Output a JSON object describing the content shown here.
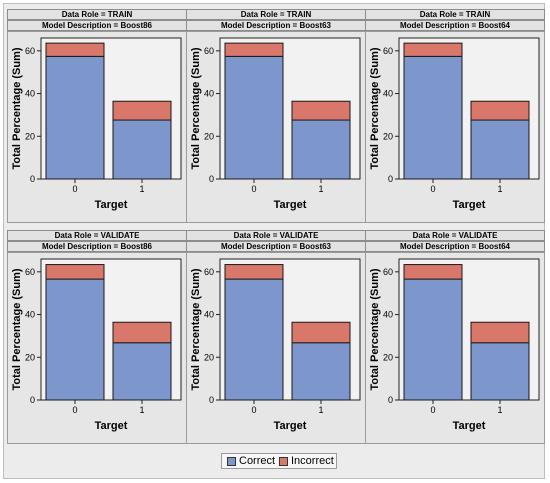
{
  "colors": {
    "correct": "#7d96cc",
    "incorrect": "#d9776b",
    "plot_bg": "#f2f2f2"
  },
  "legend": {
    "items": [
      {
        "label": "Correct",
        "color": "#7d96cc"
      },
      {
        "label": "Incorrect",
        "color": "#d9776b"
      }
    ]
  },
  "chart_data": [
    {
      "type": "bar",
      "stacked": true,
      "row_label": "Data Role = TRAIN",
      "col_label": "Model Description = Boost86",
      "categories": [
        "0",
        "1"
      ],
      "xlabel": "Target",
      "ylabel": "Total Percentage (Sum)",
      "ylim": [
        0,
        66
      ],
      "yticks": [
        "0",
        "20",
        "40",
        "60"
      ],
      "series": [
        {
          "name": "Correct",
          "values": [
            57.4,
            27.6
          ]
        },
        {
          "name": "Incorrect",
          "values": [
            6.2,
            8.8
          ]
        }
      ]
    },
    {
      "type": "bar",
      "stacked": true,
      "row_label": "Data Role = TRAIN",
      "col_label": "Model Description = Boost63",
      "categories": [
        "0",
        "1"
      ],
      "xlabel": "Target",
      "ylabel": "Total Percentage (Sum)",
      "ylim": [
        0,
        66
      ],
      "yticks": [
        "0",
        "20",
        "40",
        "60"
      ],
      "series": [
        {
          "name": "Correct",
          "values": [
            57.4,
            27.6
          ]
        },
        {
          "name": "Incorrect",
          "values": [
            6.2,
            8.8
          ]
        }
      ]
    },
    {
      "type": "bar",
      "stacked": true,
      "row_label": "Data Role = TRAIN",
      "col_label": "Model Description = Boost64",
      "categories": [
        "0",
        "1"
      ],
      "xlabel": "Target",
      "ylabel": "Total Percentage (Sum)",
      "ylim": [
        0,
        66
      ],
      "yticks": [
        "0",
        "20",
        "40",
        "60"
      ],
      "series": [
        {
          "name": "Correct",
          "values": [
            57.4,
            27.6
          ]
        },
        {
          "name": "Incorrect",
          "values": [
            6.2,
            8.8
          ]
        }
      ]
    },
    {
      "type": "bar",
      "stacked": true,
      "row_label": "Data Role = VALIDATE",
      "col_label": "Model Description = Boost86",
      "categories": [
        "0",
        "1"
      ],
      "xlabel": "Target",
      "ylabel": "Total Percentage (Sum)",
      "ylim": [
        0,
        66
      ],
      "yticks": [
        "0",
        "20",
        "40",
        "60"
      ],
      "series": [
        {
          "name": "Correct",
          "values": [
            56.6,
            26.8
          ]
        },
        {
          "name": "Incorrect",
          "values": [
            6.8,
            9.6
          ]
        }
      ]
    },
    {
      "type": "bar",
      "stacked": true,
      "row_label": "Data Role = VALIDATE",
      "col_label": "Model Description = Boost63",
      "categories": [
        "0",
        "1"
      ],
      "xlabel": "Target",
      "ylabel": "Total Percentage (Sum)",
      "ylim": [
        0,
        66
      ],
      "yticks": [
        "0",
        "20",
        "40",
        "60"
      ],
      "series": [
        {
          "name": "Correct",
          "values": [
            56.6,
            26.8
          ]
        },
        {
          "name": "Incorrect",
          "values": [
            6.8,
            9.6
          ]
        }
      ]
    },
    {
      "type": "bar",
      "stacked": true,
      "row_label": "Data Role = VALIDATE",
      "col_label": "Model Description = Boost64",
      "categories": [
        "0",
        "1"
      ],
      "xlabel": "Target",
      "ylabel": "Total Percentage (Sum)",
      "ylim": [
        0,
        66
      ],
      "yticks": [
        "0",
        "20",
        "40",
        "60"
      ],
      "series": [
        {
          "name": "Correct",
          "values": [
            56.6,
            26.8
          ]
        },
        {
          "name": "Incorrect",
          "values": [
            6.8,
            9.6
          ]
        }
      ]
    }
  ]
}
